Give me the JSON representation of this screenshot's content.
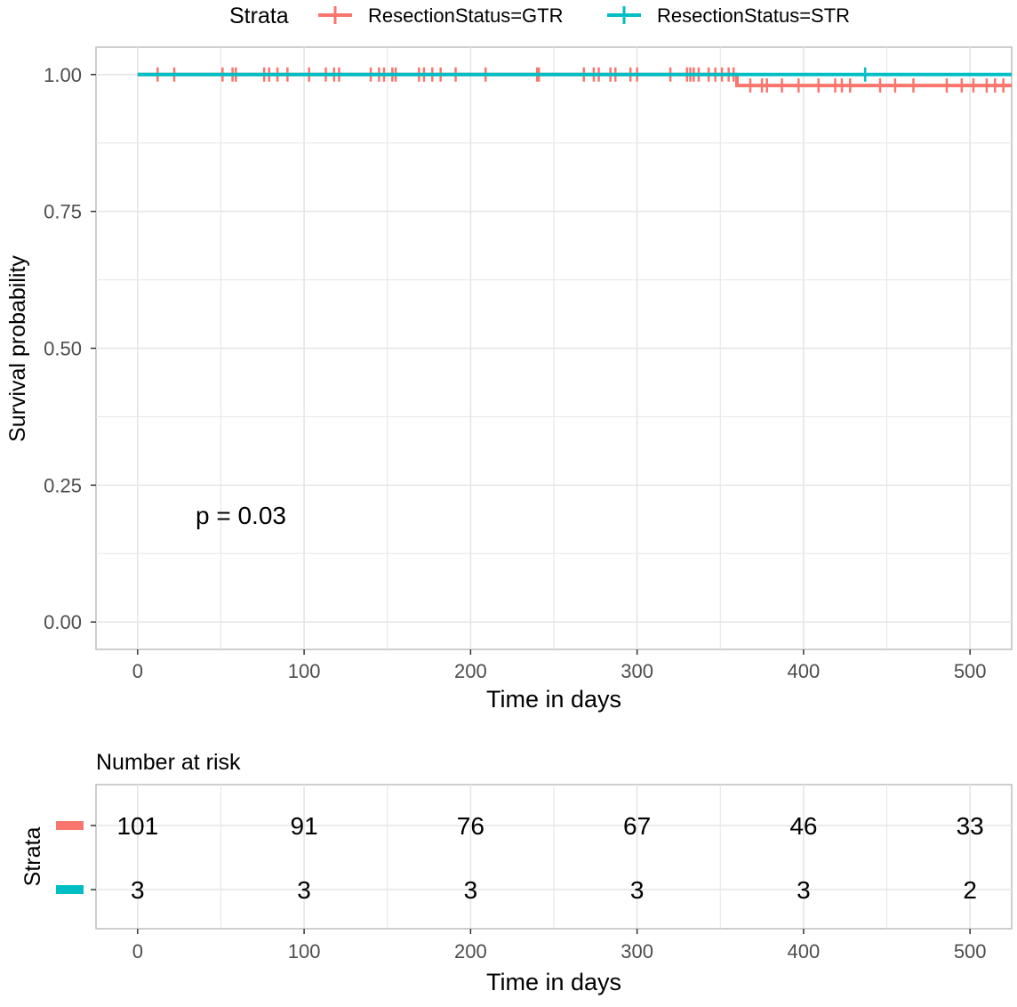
{
  "colors": {
    "gtr": "#F8766D",
    "str": "#00BFC4",
    "grid": "#E5E5E5",
    "axis_text": "#4D4D4D",
    "text": "#000000"
  },
  "legend": {
    "title": "Strata",
    "position": "top"
  },
  "annotation": {
    "pvalue": "p = 0.03"
  },
  "chart_data": [
    {
      "type": "line",
      "subtype": "kaplan-meier",
      "xlabel": "Time in days",
      "ylabel": "Survival probability",
      "xlim": [
        -25,
        525
      ],
      "ylim": [
        -0.05,
        1.05
      ],
      "xticks": [
        0,
        100,
        200,
        300,
        400,
        500
      ],
      "xtick_labels": [
        "0",
        "100",
        "200",
        "300",
        "400",
        "500"
      ],
      "yticks": [
        0,
        0.25,
        0.5,
        0.75,
        1
      ],
      "ytick_labels": [
        "0.00",
        "0.25",
        "0.50",
        "0.75",
        "1.00"
      ],
      "grid": true,
      "series": [
        {
          "name": "ResectionStatus=GTR",
          "color": "#F8766D",
          "x": [
            0,
            360,
            525
          ],
          "y": [
            1.0,
            0.98,
            0.98
          ],
          "censor_times": [
            12,
            22,
            51,
            57,
            59,
            76,
            79,
            84,
            90,
            103,
            113,
            118,
            121,
            140,
            145,
            148,
            153,
            155,
            169,
            172,
            177,
            182,
            191,
            209,
            240,
            241,
            268,
            274,
            277,
            284,
            287,
            296,
            300,
            320,
            330,
            332,
            334,
            337,
            343,
            347,
            351,
            355,
            358,
            368,
            375,
            378,
            387,
            397,
            409,
            419,
            423,
            428,
            446,
            455,
            466,
            486,
            495,
            502,
            510,
            515,
            520
          ]
        },
        {
          "name": "ResectionStatus=STR",
          "color": "#00BFC4",
          "x": [
            0,
            525
          ],
          "y": [
            1.0,
            1.0
          ],
          "censor_times": [
            437
          ]
        }
      ]
    },
    {
      "type": "table",
      "title": "Number at risk",
      "ylabel": "Strata",
      "xlabel": "Time in days",
      "xticks": [
        0,
        100,
        200,
        300,
        400,
        500
      ],
      "xtick_labels": [
        "0",
        "100",
        "200",
        "300",
        "400",
        "500"
      ],
      "rows": [
        {
          "name": "ResectionStatus=GTR",
          "color": "#F8766D",
          "values": [
            "101",
            "91",
            "76",
            "67",
            "46",
            "33"
          ]
        },
        {
          "name": "ResectionStatus=STR",
          "color": "#00BFC4",
          "values": [
            "3",
            "3",
            "3",
            "3",
            "3",
            "2"
          ]
        }
      ]
    }
  ]
}
